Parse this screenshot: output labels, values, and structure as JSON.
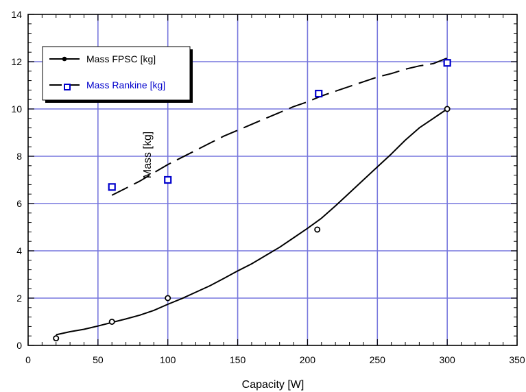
{
  "chart_data": {
    "type": "line",
    "xlabel": "Capacity [W]",
    "ylabel": "Mass  [kg]",
    "xlim": [
      0,
      350
    ],
    "ylim": [
      0,
      14
    ],
    "xticks": [
      "0",
      "50",
      "100",
      "150",
      "200",
      "250",
      "300",
      "350"
    ],
    "yticks": [
      "0",
      "2",
      "4",
      "6",
      "8",
      "10",
      "12",
      "14"
    ],
    "grid": true,
    "legend_position": "top-left",
    "series": [
      {
        "name": "Mass FPSC [kg]",
        "color": "#000000",
        "line": [
          [
            20,
            0.45
          ],
          [
            30,
            0.58
          ],
          [
            40,
            0.68
          ],
          [
            50,
            0.82
          ],
          [
            60,
            0.97
          ],
          [
            70,
            1.12
          ],
          [
            80,
            1.28
          ],
          [
            90,
            1.48
          ],
          [
            100,
            1.74
          ],
          [
            110,
            1.98
          ],
          [
            120,
            2.25
          ],
          [
            130,
            2.52
          ],
          [
            140,
            2.83
          ],
          [
            150,
            3.15
          ],
          [
            160,
            3.45
          ],
          [
            170,
            3.8
          ],
          [
            180,
            4.15
          ],
          [
            190,
            4.55
          ],
          [
            200,
            4.95
          ],
          [
            210,
            5.38
          ],
          [
            220,
            5.9
          ],
          [
            230,
            6.45
          ],
          [
            240,
            7.0
          ],
          [
            250,
            7.55
          ],
          [
            260,
            8.1
          ],
          [
            270,
            8.68
          ],
          [
            280,
            9.2
          ],
          [
            290,
            9.6
          ],
          [
            300,
            10.0
          ]
        ],
        "points": [
          [
            20,
            0.3
          ],
          [
            60,
            1.0
          ],
          [
            100,
            2.0
          ],
          [
            207,
            4.9
          ],
          [
            300,
            10.0
          ]
        ]
      },
      {
        "name": "Mass Rankine [kg]",
        "color": "#0000cc",
        "line_color": "#000000",
        "line": [
          [
            60,
            6.35
          ],
          [
            70,
            6.65
          ],
          [
            80,
            6.95
          ],
          [
            90,
            7.3
          ],
          [
            100,
            7.65
          ],
          [
            110,
            7.95
          ],
          [
            120,
            8.25
          ],
          [
            130,
            8.55
          ],
          [
            140,
            8.85
          ],
          [
            150,
            9.1
          ],
          [
            160,
            9.35
          ],
          [
            170,
            9.6
          ],
          [
            180,
            9.85
          ],
          [
            190,
            10.1
          ],
          [
            200,
            10.3
          ],
          [
            210,
            10.55
          ],
          [
            220,
            10.75
          ],
          [
            230,
            10.95
          ],
          [
            240,
            11.15
          ],
          [
            250,
            11.35
          ],
          [
            260,
            11.5
          ],
          [
            270,
            11.68
          ],
          [
            280,
            11.82
          ],
          [
            290,
            11.92
          ],
          [
            300,
            12.15
          ]
        ],
        "points": [
          [
            60,
            6.7
          ],
          [
            100,
            7.0
          ],
          [
            208,
            10.65
          ],
          [
            300,
            11.95
          ]
        ]
      }
    ]
  }
}
